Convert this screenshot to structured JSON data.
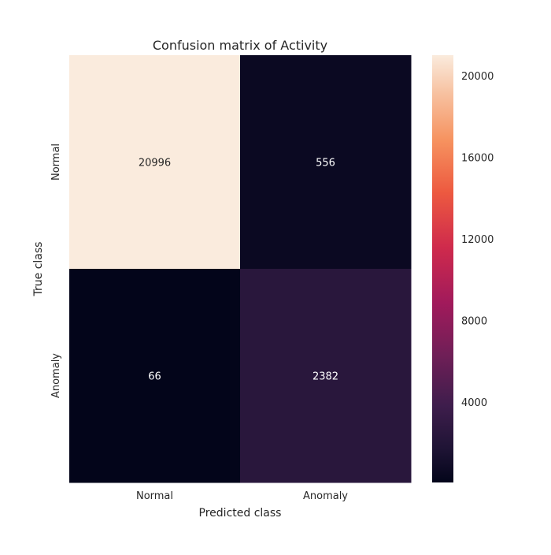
{
  "chart_data": {
    "type": "heatmap",
    "title": "Confusion matrix of Activity",
    "xlabel": "Predicted class",
    "ylabel": "True class",
    "x_categories": [
      "Normal",
      "Anomaly"
    ],
    "y_categories": [
      "Normal",
      "Anomaly"
    ],
    "values": [
      [
        20996,
        556
      ],
      [
        66,
        2382
      ]
    ],
    "cell_labels": [
      [
        "20996",
        "556"
      ],
      [
        "66",
        "2382"
      ]
    ],
    "colorbar": {
      "vmin": 66,
      "vmax": 20996,
      "ticks": [
        4000,
        8000,
        12000,
        16000,
        20000
      ],
      "tick_labels": [
        "4000",
        "8000",
        "12000",
        "16000",
        "20000"
      ],
      "colormap": "rocket"
    },
    "grid": false
  }
}
